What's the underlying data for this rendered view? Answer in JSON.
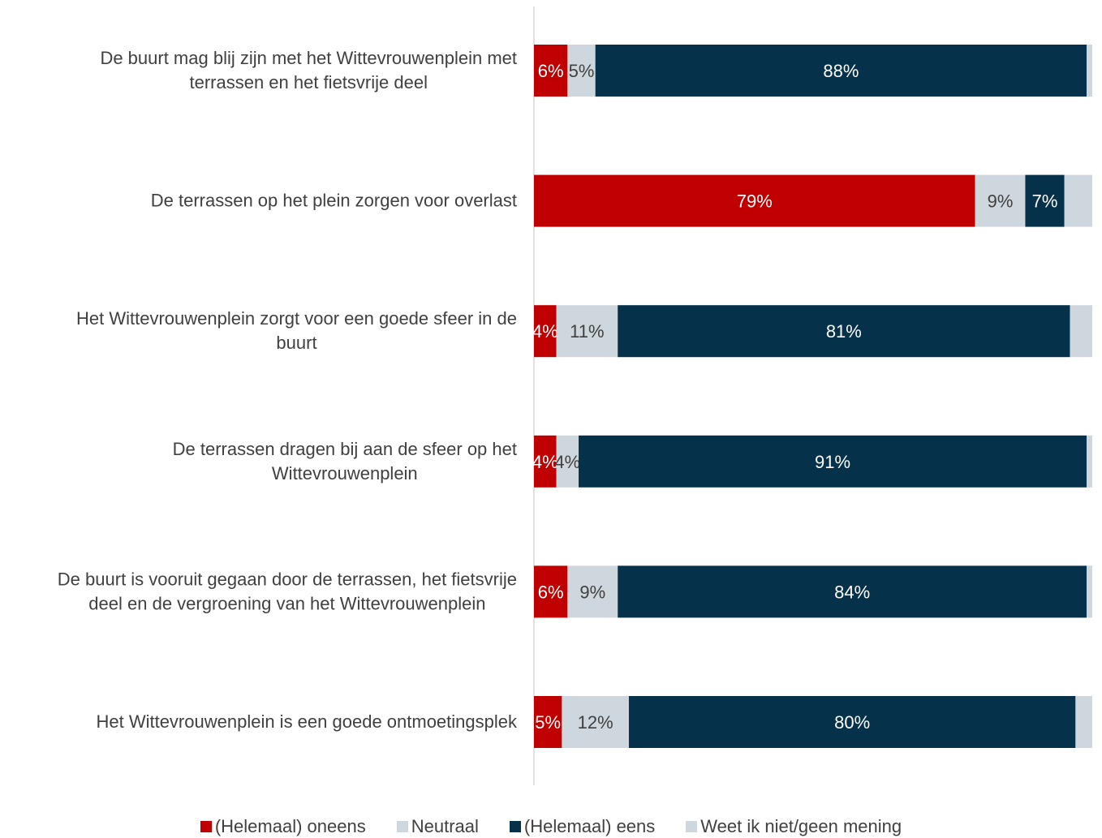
{
  "chart_data": {
    "type": "bar",
    "orientation": "horizontal",
    "stacked": true,
    "categories": [
      [
        "De buurt mag blij zijn met het Wittevrouwenplein met",
        "terrassen en het fietsvrije deel"
      ],
      [
        "De terrassen op het plein zorgen voor overlast"
      ],
      [
        "Het Wittevrouwenplein zorgt voor een goede sfeer in de",
        "buurt"
      ],
      [
        "De terrassen dragen bij aan de sfeer op het",
        "Wittevrouwenplein"
      ],
      [
        "De buurt is vooruit gegaan door de terrassen, het fietsvrije",
        "deel en de vergroening van het Wittevrouwenplein"
      ],
      [
        "Het Wittevrouwenplein is een goede ontmoetingsplek"
      ]
    ],
    "series": [
      {
        "name": "(Helemaal) oneens",
        "color": "#c00000",
        "label_color": "#ffffff",
        "values": [
          6,
          79,
          4,
          4,
          6,
          5
        ],
        "labels": [
          "6%",
          "79%",
          "4%",
          "4%",
          "6%",
          "5%"
        ]
      },
      {
        "name": "Neutraal",
        "color": "#cdd7dd",
        "label_color": "#404040",
        "values": [
          5,
          9,
          11,
          4,
          9,
          12
        ],
        "labels": [
          "5%",
          "9%",
          "11%",
          "4%",
          "9%",
          "12%"
        ]
      },
      {
        "name": "(Helemaal) eens",
        "color": "#05324a",
        "label_color": "#ffffff",
        "values": [
          88,
          7,
          81,
          91,
          84,
          80
        ],
        "labels": [
          "88%",
          "7%",
          "81%",
          "91%",
          "84%",
          "80%"
        ]
      },
      {
        "name": "Weet ik niet/geen mening",
        "color": "#cdd7dd",
        "label_color": "#404040",
        "values": [
          1,
          5,
          4,
          1,
          1,
          3
        ],
        "labels": [
          "",
          "",
          "",
          "",
          "",
          ""
        ]
      }
    ],
    "xlim": [
      0,
      100
    ],
    "grid": false,
    "legend_position": "bottom"
  }
}
